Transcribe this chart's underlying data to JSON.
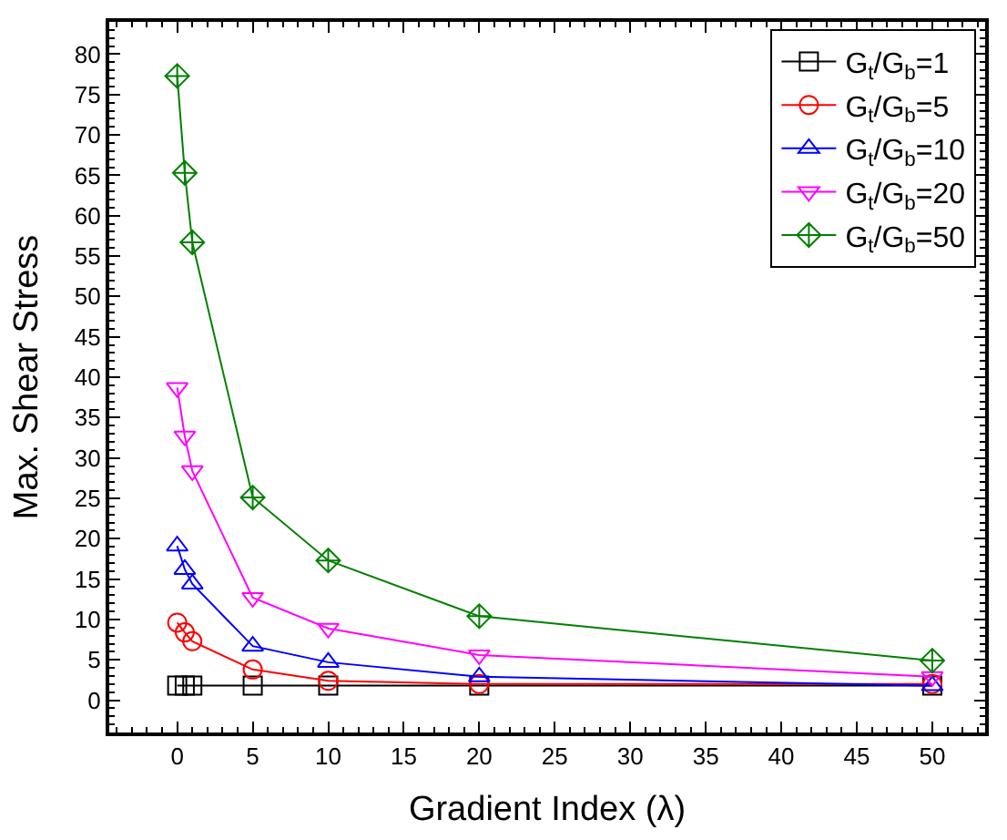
{
  "chart_data": {
    "type": "line",
    "xlabel": "Gradient Index (λ)",
    "ylabel": "Max. Shear Stress",
    "x": [
      0,
      0.5,
      1,
      5,
      10,
      20,
      50
    ],
    "series": [
      {
        "name": "G$_{t}$/G$_{b}$=1",
        "color": "#000000",
        "marker": "square",
        "values": [
          1.8,
          1.8,
          1.8,
          1.8,
          1.8,
          1.8,
          1.8
        ]
      },
      {
        "name": "G$_{t}$/G$_{b}$=5",
        "color": "#ff0000",
        "marker": "circle",
        "values": [
          9.6,
          8.4,
          7.3,
          3.8,
          2.4,
          2.0,
          2.0
        ]
      },
      {
        "name": "G$_{t}$/G$_{b}$=10",
        "color": "#0000ff",
        "marker": "triangle",
        "values": [
          19.1,
          16.2,
          14.4,
          6.7,
          4.7,
          2.9,
          1.8
        ]
      },
      {
        "name": "G$_{t}$/G$_{b}$=20",
        "color": "#ff00ff",
        "marker": "triangle-down",
        "values": [
          38.7,
          32.7,
          28.4,
          12.7,
          8.9,
          5.6,
          2.9
        ]
      },
      {
        "name": "G$_{t}$/G$_{b}$=50",
        "color": "#008000",
        "marker": "diamond",
        "values": [
          77.3,
          65.3,
          56.7,
          25.1,
          17.3,
          10.4,
          4.9
        ]
      }
    ],
    "xlim": [
      -4.5,
      53.5
    ],
    "xticks": [
      0,
      5,
      10,
      15,
      20,
      25,
      30,
      35,
      40,
      45,
      50
    ],
    "ylim": [
      -4,
      84
    ],
    "yticks": [
      0,
      5,
      10,
      15,
      20,
      25,
      30,
      35,
      40,
      45,
      50,
      55,
      60,
      65,
      70,
      75,
      80
    ],
    "legend": "top right"
  }
}
